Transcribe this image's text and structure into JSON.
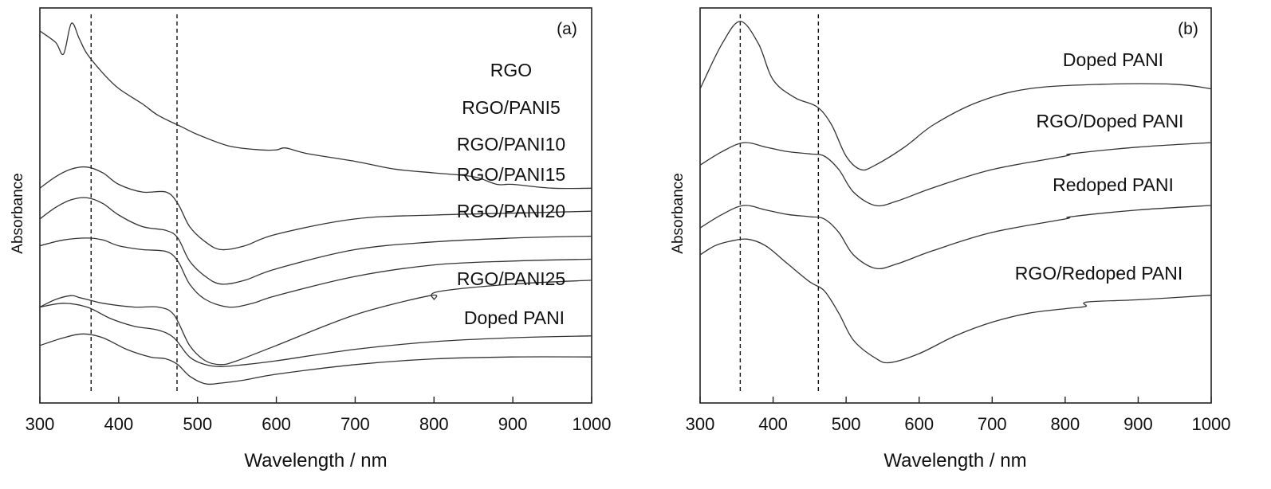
{
  "chart_data": [
    {
      "type": "line",
      "panel_label": "(a)",
      "xlabel": "Wavelength / nm",
      "ylabel": "Absorbance",
      "xlim": [
        300,
        1000
      ],
      "xticks": [
        "300",
        "400",
        "500",
        "600",
        "700",
        "800",
        "900",
        "1000"
      ],
      "y_ticks_shown": false,
      "reference_lines_x": [
        365,
        474
      ],
      "series": [
        {
          "name": "RGO",
          "x": [
            300,
            320,
            330,
            340,
            350,
            360,
            380,
            400,
            430,
            450,
            480,
            500,
            540,
            580,
            600,
            612,
            640,
            700,
            750,
            800,
            850,
            880,
            900,
            950,
            1000
          ],
          "y": [
            0.97,
            0.94,
            0.91,
            0.99,
            0.95,
            0.91,
            0.86,
            0.82,
            0.78,
            0.75,
            0.72,
            0.7,
            0.67,
            0.66,
            0.66,
            0.665,
            0.65,
            0.63,
            0.61,
            0.6,
            0.59,
            0.57,
            0.57,
            0.56,
            0.56
          ]
        },
        {
          "name": "RGO/PANI5",
          "x": [
            300,
            320,
            340,
            360,
            380,
            400,
            430,
            460,
            475,
            490,
            510,
            530,
            560,
            600,
            700,
            800,
            900,
            1000
          ],
          "y": [
            0.56,
            0.59,
            0.61,
            0.615,
            0.6,
            0.57,
            0.55,
            0.55,
            0.52,
            0.46,
            0.42,
            0.4,
            0.41,
            0.44,
            0.48,
            0.49,
            0.495,
            0.5
          ]
        },
        {
          "name": "RGO/PANI10",
          "x": [
            300,
            320,
            340,
            360,
            380,
            400,
            430,
            460,
            475,
            490,
            510,
            530,
            560,
            600,
            700,
            800,
            900,
            1000
          ],
          "y": [
            0.48,
            0.51,
            0.53,
            0.535,
            0.52,
            0.49,
            0.46,
            0.45,
            0.43,
            0.37,
            0.33,
            0.31,
            0.32,
            0.35,
            0.4,
            0.42,
            0.43,
            0.435
          ]
        },
        {
          "name": "RGO/PANI15",
          "x": [
            300,
            330,
            360,
            380,
            400,
            430,
            460,
            475,
            490,
            510,
            540,
            570,
            600,
            700,
            800,
            900,
            1000
          ],
          "y": [
            0.41,
            0.425,
            0.43,
            0.425,
            0.41,
            0.4,
            0.395,
            0.37,
            0.31,
            0.27,
            0.25,
            0.26,
            0.28,
            0.33,
            0.36,
            0.37,
            0.375
          ]
        },
        {
          "name": "RGO/PANI20",
          "x": [
            300,
            320,
            340,
            350,
            360,
            380,
            420,
            450,
            470,
            490,
            510,
            530,
            550,
            600,
            700,
            795,
            800,
            805,
            900,
            1000
          ],
          "y": [
            0.25,
            0.27,
            0.28,
            0.275,
            0.27,
            0.26,
            0.25,
            0.25,
            0.23,
            0.15,
            0.11,
            0.1,
            0.11,
            0.15,
            0.23,
            0.28,
            0.27,
            0.29,
            0.31,
            0.32
          ]
        },
        {
          "name": "RGO/PANI25",
          "x": [
            300,
            330,
            360,
            390,
            420,
            450,
            470,
            490,
            510,
            530,
            560,
            600,
            700,
            800,
            900,
            1000
          ],
          "y": [
            0.25,
            0.26,
            0.25,
            0.22,
            0.2,
            0.19,
            0.17,
            0.12,
            0.1,
            0.095,
            0.1,
            0.11,
            0.14,
            0.16,
            0.17,
            0.175
          ]
        },
        {
          "name": "Doped PANI",
          "x": [
            300,
            330,
            355,
            380,
            410,
            440,
            460,
            475,
            490,
            510,
            530,
            560,
            600,
            700,
            800,
            900,
            1000
          ],
          "y": [
            0.15,
            0.17,
            0.18,
            0.17,
            0.14,
            0.12,
            0.115,
            0.1,
            0.07,
            0.05,
            0.052,
            0.06,
            0.075,
            0.1,
            0.115,
            0.12,
            0.12
          ]
        }
      ]
    },
    {
      "type": "line",
      "panel_label": "(b)",
      "xlabel": "Wavelength / nm",
      "ylabel": "Absorbance",
      "xlim": [
        300,
        1000
      ],
      "xticks": [
        "300",
        "400",
        "500",
        "600",
        "700",
        "800",
        "900",
        "1000"
      ],
      "y_ticks_shown": false,
      "reference_lines_x": [
        355,
        462
      ],
      "series": [
        {
          "name": "Doped PANI",
          "x": [
            300,
            330,
            355,
            380,
            400,
            430,
            460,
            480,
            500,
            520,
            540,
            580,
            620,
            680,
            750,
            850,
            950,
            1000
          ],
          "y": [
            0.9,
            1.0,
            1.05,
            1.0,
            0.92,
            0.88,
            0.86,
            0.82,
            0.75,
            0.72,
            0.73,
            0.77,
            0.82,
            0.87,
            0.9,
            0.91,
            0.91,
            0.9
          ]
        },
        {
          "name": "RGO/Doped PANI",
          "x": [
            300,
            330,
            360,
            390,
            420,
            450,
            470,
            490,
            510,
            540,
            570,
            620,
            700,
            800,
            808,
            900,
            1000
          ],
          "y": [
            0.73,
            0.76,
            0.78,
            0.77,
            0.76,
            0.755,
            0.75,
            0.72,
            0.67,
            0.64,
            0.65,
            0.68,
            0.72,
            0.75,
            0.755,
            0.77,
            0.78
          ]
        },
        {
          "name": "Redoped PANI",
          "x": [
            300,
            330,
            360,
            390,
            420,
            450,
            470,
            490,
            510,
            540,
            570,
            620,
            700,
            800,
            808,
            900,
            1000
          ],
          "y": [
            0.59,
            0.62,
            0.64,
            0.63,
            0.62,
            0.615,
            0.61,
            0.58,
            0.53,
            0.5,
            0.51,
            0.54,
            0.58,
            0.61,
            0.615,
            0.63,
            0.64
          ]
        },
        {
          "name": "RGO/Redoped PANI",
          "x": [
            300,
            320,
            340,
            365,
            390,
            420,
            450,
            470,
            490,
            510,
            540,
            560,
            600,
            650,
            700,
            750,
            800,
            828,
            830,
            900,
            1000
          ],
          "y": [
            0.53,
            0.55,
            0.56,
            0.565,
            0.55,
            0.51,
            0.47,
            0.45,
            0.4,
            0.34,
            0.3,
            0.29,
            0.31,
            0.35,
            0.38,
            0.4,
            0.41,
            0.415,
            0.425,
            0.43,
            0.44
          ]
        }
      ]
    }
  ]
}
